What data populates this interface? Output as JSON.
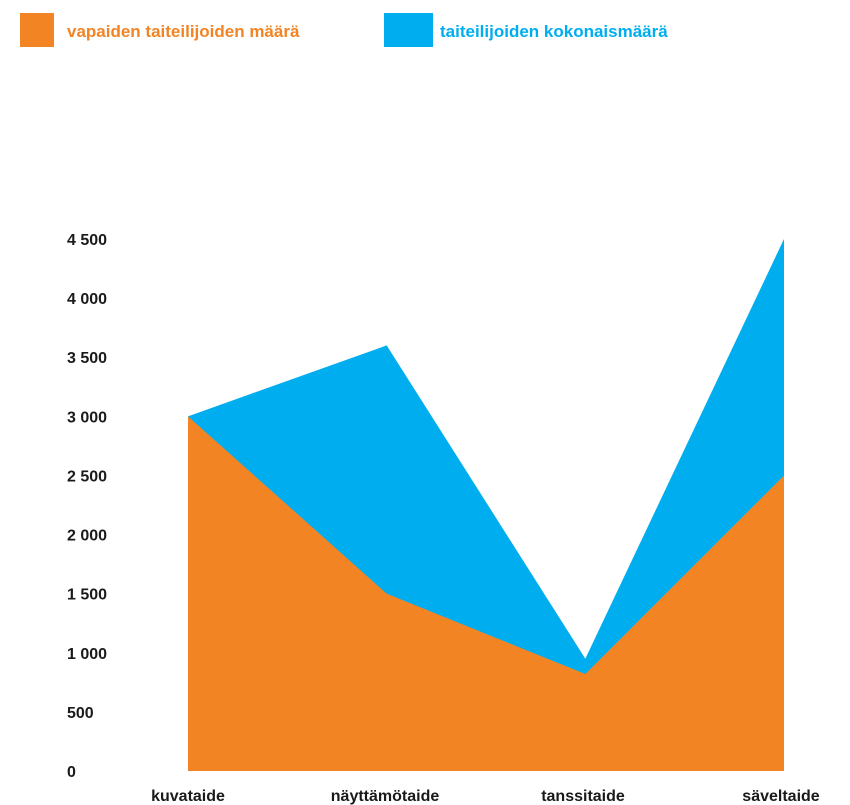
{
  "colors": {
    "free_artists": "#f28424",
    "total_artists": "#00aeef"
  },
  "chart_data": {
    "type": "area",
    "categories": [
      "kuvataide",
      "näyttämötaide",
      "tanssitaide",
      "säveltaide"
    ],
    "series": [
      {
        "name": "taiteilijoiden kokonaismäärä",
        "values": [
          3000,
          3600,
          950,
          4500
        ]
      },
      {
        "name": "vapaiden taiteilijoiden määrä",
        "values": [
          3000,
          1500,
          820,
          2500
        ]
      }
    ],
    "y_ticks": [
      "0",
      "500",
      "1 000",
      "1 500",
      "2 000",
      "2 500",
      "3 000",
      "3 500",
      "4 000",
      "4 500"
    ],
    "ylim": [
      0,
      4500
    ],
    "legend": "top-left",
    "grid": false
  }
}
